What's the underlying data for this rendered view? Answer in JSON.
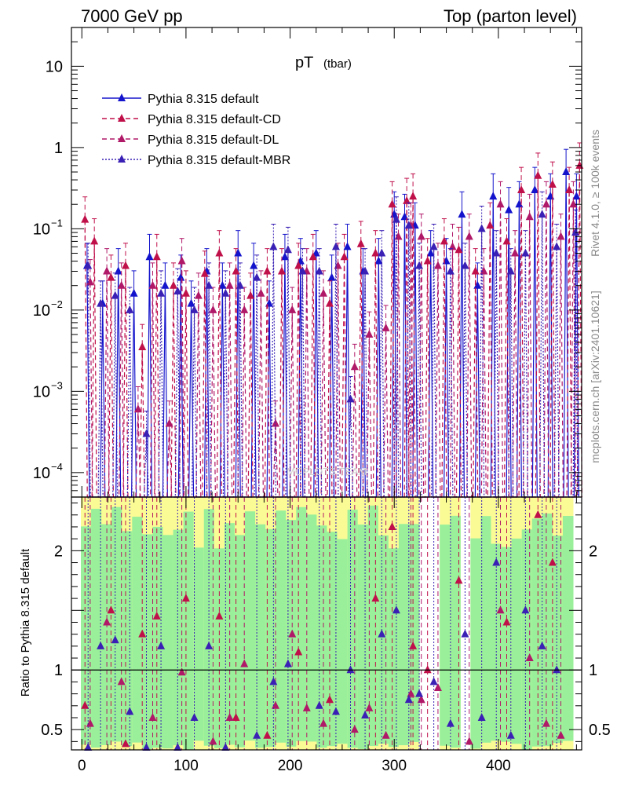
{
  "header": {
    "left": "7000 GeV pp",
    "right": "Top (parton level)"
  },
  "side_labels": {
    "rivet": "Rivet 4.1.0, ≥ 100k events",
    "mcplots": "mcplots.cern.ch [arXiv:2401.10621]"
  },
  "watermark": "MCPLOTS TEAM",
  "colors": {
    "default": "#1414cc",
    "cd": "#c0104a",
    "dl": "#b01868",
    "mbr": "#3a20b4",
    "band_inner": "#9af09a",
    "band_outer": "#fbfb96",
    "axis": "#000000"
  },
  "chart_data": {
    "type": "line",
    "title": "pT",
    "title_sub": "(tbar)",
    "xlabel": "",
    "ratio_ylabel": "Ratio to Pythia 8.315 default",
    "xlim": [
      -10,
      480
    ],
    "ylim_main": [
      5e-05,
      30
    ],
    "ylim_ratio": [
      0.33,
      2.45
    ],
    "yscale_main": "log",
    "x_ticks": [
      0,
      100,
      200,
      300,
      400
    ],
    "x_tick_labels": [
      "0",
      "100",
      "200",
      "300",
      "400"
    ],
    "y_ticks_main": [
      {
        "value": 10,
        "base": "10",
        "exp": ""
      },
      {
        "value": 1,
        "base": "1",
        "exp": ""
      },
      {
        "value": 0.1,
        "base": "10",
        "exp": "−1"
      },
      {
        "value": 0.01,
        "base": "10",
        "exp": "−2"
      },
      {
        "value": 0.001,
        "base": "10",
        "exp": "−3"
      },
      {
        "value": 0.0001,
        "base": "10",
        "exp": "−4"
      }
    ],
    "y_ticks_ratio": [
      {
        "value": 0.5,
        "label": "0.5"
      },
      {
        "value": 1,
        "label": "1"
      },
      {
        "value": 2,
        "label": "2"
      }
    ],
    "legend": [
      {
        "label": "Pythia 8.315 default",
        "style": "solid",
        "color_key": "default"
      },
      {
        "label": "Pythia 8.315 default-CD",
        "style": "dashed",
        "color_key": "cd"
      },
      {
        "label": "Pythia 8.315 default-DL",
        "style": "dashed",
        "color_key": "dl"
      },
      {
        "label": "Pythia 8.315 default-MBR",
        "style": "dotted",
        "color_key": "mbr"
      }
    ],
    "legend_position": "top-left",
    "series": [
      {
        "name": "Pythia 8.315 default",
        "x": [
          5,
          20,
          35,
          50,
          65,
          80,
          95,
          105,
          120,
          135,
          150,
          165,
          180,
          195,
          210,
          225,
          240,
          255,
          270,
          285,
          300,
          310,
          320,
          335,
          350,
          365,
          380,
          395,
          410,
          420,
          435,
          450,
          465,
          475
        ],
        "y": [
          0.035,
          0.012,
          0.03,
          0.016,
          0.045,
          0.02,
          0.025,
          0.012,
          0.03,
          0.02,
          0.05,
          0.035,
          0.012,
          0.045,
          0.04,
          0.05,
          0.025,
          0.06,
          0.03,
          0.04,
          0.15,
          0.14,
          0.11,
          0.05,
          0.04,
          0.15,
          0.02,
          0.25,
          0.17,
          0.2,
          0.3,
          0.25,
          0.5,
          0.25
        ]
      },
      {
        "name": "Pythia 8.315 default-CD",
        "x": [
          3,
          12,
          28,
          42,
          58,
          72,
          88,
          100,
          118,
          132,
          148,
          162,
          178,
          192,
          208,
          222,
          238,
          252,
          268,
          282,
          298,
          312,
          318,
          332,
          348,
          362,
          378,
          392,
          408,
          422,
          438,
          452,
          468,
          478
        ],
        "y": [
          0.13,
          0.07,
          0.025,
          0.035,
          0.0035,
          0.045,
          0.02,
          0.016,
          0.028,
          0.05,
          0.03,
          0.015,
          0.03,
          0.03,
          0.035,
          0.045,
          0.012,
          0.045,
          0.065,
          0.05,
          0.2,
          0.22,
          0.25,
          0.04,
          0.07,
          0.055,
          0.03,
          0.11,
          0.07,
          0.3,
          0.45,
          0.35,
          0.3,
          0.6
        ]
      },
      {
        "name": "Pythia 8.315 default-DL",
        "x": [
          8,
          24,
          38,
          54,
          68,
          84,
          96,
          112,
          126,
          142,
          156,
          172,
          186,
          202,
          216,
          232,
          246,
          262,
          276,
          292,
          304,
          316,
          326,
          342,
          356,
          372,
          386,
          402,
          416,
          430,
          446,
          460,
          472
        ],
        "y": [
          0.022,
          0.03,
          0.02,
          0.0006,
          0.02,
          0.0004,
          0.04,
          0.015,
          0.01,
          0.02,
          0.01,
          0.016,
          0.0004,
          0.01,
          0.03,
          0.016,
          0.035,
          0.002,
          0.005,
          0.006,
          0.08,
          0.11,
          0.08,
          0.035,
          0.06,
          0.08,
          0.03,
          0.2,
          0.05,
          0.14,
          0.2,
          0.08,
          0.2
        ]
      },
      {
        "name": "Pythia 8.315 default-MBR",
        "x": [
          6,
          18,
          32,
          46,
          62,
          76,
          92,
          108,
          122,
          138,
          152,
          168,
          184,
          198,
          212,
          228,
          244,
          258,
          272,
          288,
          302,
          314,
          324,
          338,
          354,
          368,
          384,
          398,
          412,
          426,
          442,
          456,
          474
        ],
        "y": [
          0.035,
          0.012,
          0.015,
          0.01,
          0.0003,
          0.016,
          0.017,
          0.01,
          0.02,
          0.016,
          0.02,
          0.025,
          0.06,
          0.055,
          0.03,
          0.03,
          0.06,
          0.0008,
          0.03,
          0.05,
          0.13,
          0.11,
          0.035,
          0.06,
          0.03,
          0.035,
          0.1,
          0.05,
          0.03,
          0.05,
          0.15,
          0.06,
          0.09
        ]
      }
    ],
    "ratio_series": [
      {
        "name": "Pythia 8.315 default-CD",
        "x": [
          3,
          28,
          42,
          58,
          72,
          100,
          132,
          148,
          178,
          208,
          238,
          282,
          298,
          318,
          332,
          362,
          408,
          438,
          452
        ],
        "y": [
          0.7,
          1.5,
          0.38,
          1.3,
          1.45,
          1.6,
          1.45,
          0.6,
          0.45,
          1.15,
          0.75,
          1.6,
          2.2,
          1.2,
          1.0,
          1.75,
          1.4,
          2.3,
          1.9
        ]
      },
      {
        "name": "Pythia 8.315 default-DL",
        "x": [
          8,
          24,
          38,
          68,
          96,
          126,
          142,
          156,
          186,
          202,
          216,
          232,
          262,
          276,
          292,
          316,
          326,
          342,
          372,
          402,
          430,
          446,
          460
        ],
        "y": [
          0.55,
          1.4,
          0.9,
          0.6,
          0.98,
          0.4,
          0.6,
          1.05,
          0.7,
          1.3,
          0.68,
          0.55,
          0.5,
          0.68,
          0.45,
          0.8,
          0.75,
          0.85,
          0.4,
          1.5,
          1.1,
          0.55,
          0.45
        ]
      },
      {
        "name": "Pythia 8.315 default-MBR",
        "x": [
          6,
          18,
          32,
          46,
          62,
          76,
          92,
          108,
          122,
          138,
          168,
          184,
          198,
          228,
          244,
          258,
          272,
          288,
          302,
          314,
          324,
          338,
          354,
          368,
          384,
          398,
          412,
          426,
          442,
          456
        ],
        "y": [
          0.35,
          1.2,
          1.25,
          0.65,
          0.35,
          1.2,
          0.35,
          0.6,
          1.2,
          0.35,
          0.45,
          0.9,
          1.05,
          0.7,
          0.65,
          1.0,
          0.62,
          1.3,
          1.5,
          0.75,
          0.8,
          0.9,
          0.55,
          1.3,
          0.6,
          1.9,
          0.45,
          1.5,
          1.2,
          1.0
        ]
      }
    ]
  }
}
